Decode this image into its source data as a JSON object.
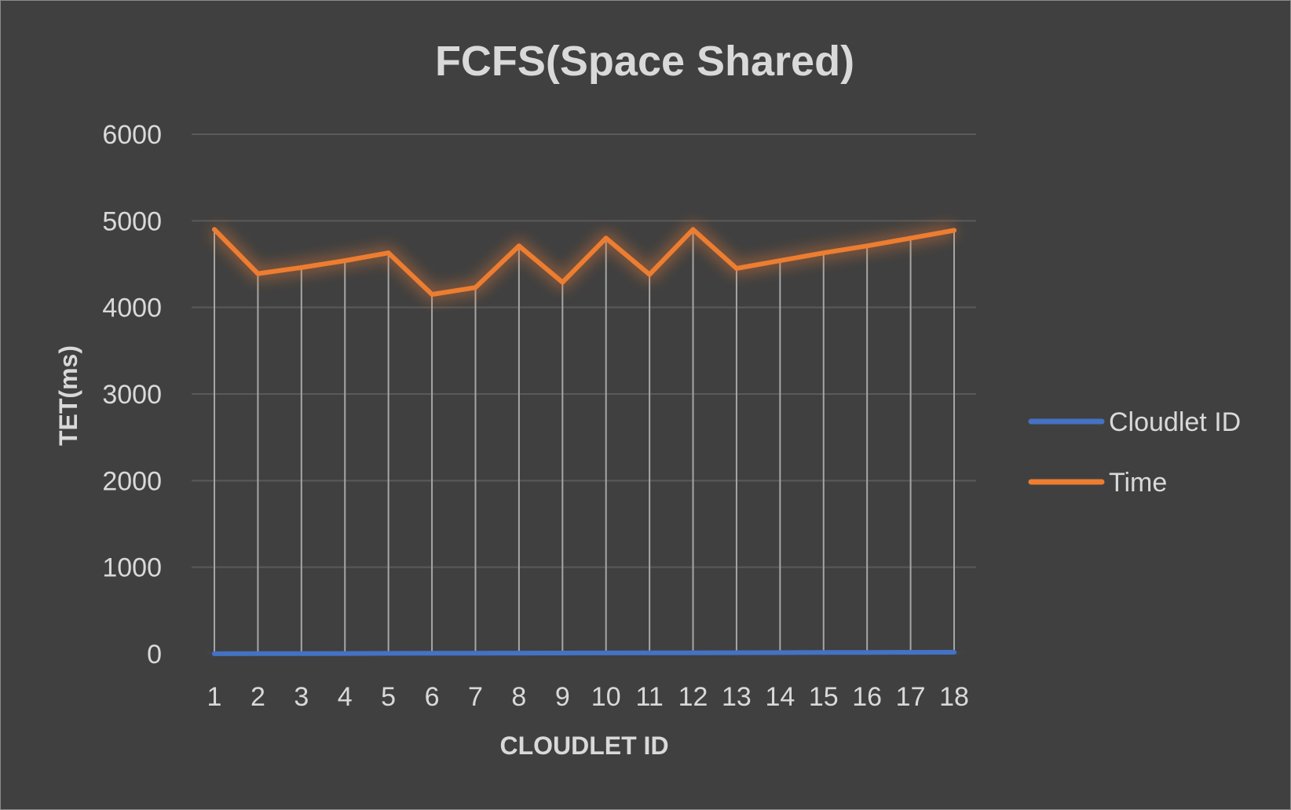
{
  "chart_data": {
    "type": "line",
    "title": "FCFS(Space Shared)",
    "xlabel": "CLOUDLET ID",
    "ylabel": "TET(ms)",
    "categories": [
      "1",
      "2",
      "3",
      "4",
      "5",
      "6",
      "7",
      "8",
      "9",
      "10",
      "11",
      "12",
      "13",
      "14",
      "15",
      "16",
      "17",
      "18"
    ],
    "ylim": [
      0,
      6000
    ],
    "yticks": [
      "0",
      "1000",
      "2000",
      "3000",
      "4000",
      "5000",
      "6000"
    ],
    "grid": true,
    "drop_lines": true,
    "legend_position": "right",
    "series": [
      {
        "name": "Cloudlet ID",
        "color": "#4472c4",
        "values": [
          1,
          2,
          3,
          4,
          5,
          6,
          7,
          8,
          9,
          10,
          11,
          12,
          13,
          14,
          15,
          16,
          17,
          18
        ]
      },
      {
        "name": "Time",
        "color": "#ed7d31",
        "values": [
          4900,
          4390,
          4460,
          4540,
          4630,
          4150,
          4230,
          4710,
          4290,
          4800,
          4380,
          4900,
          4450,
          4540,
          4630,
          4710,
          4800,
          4890
        ]
      }
    ]
  }
}
